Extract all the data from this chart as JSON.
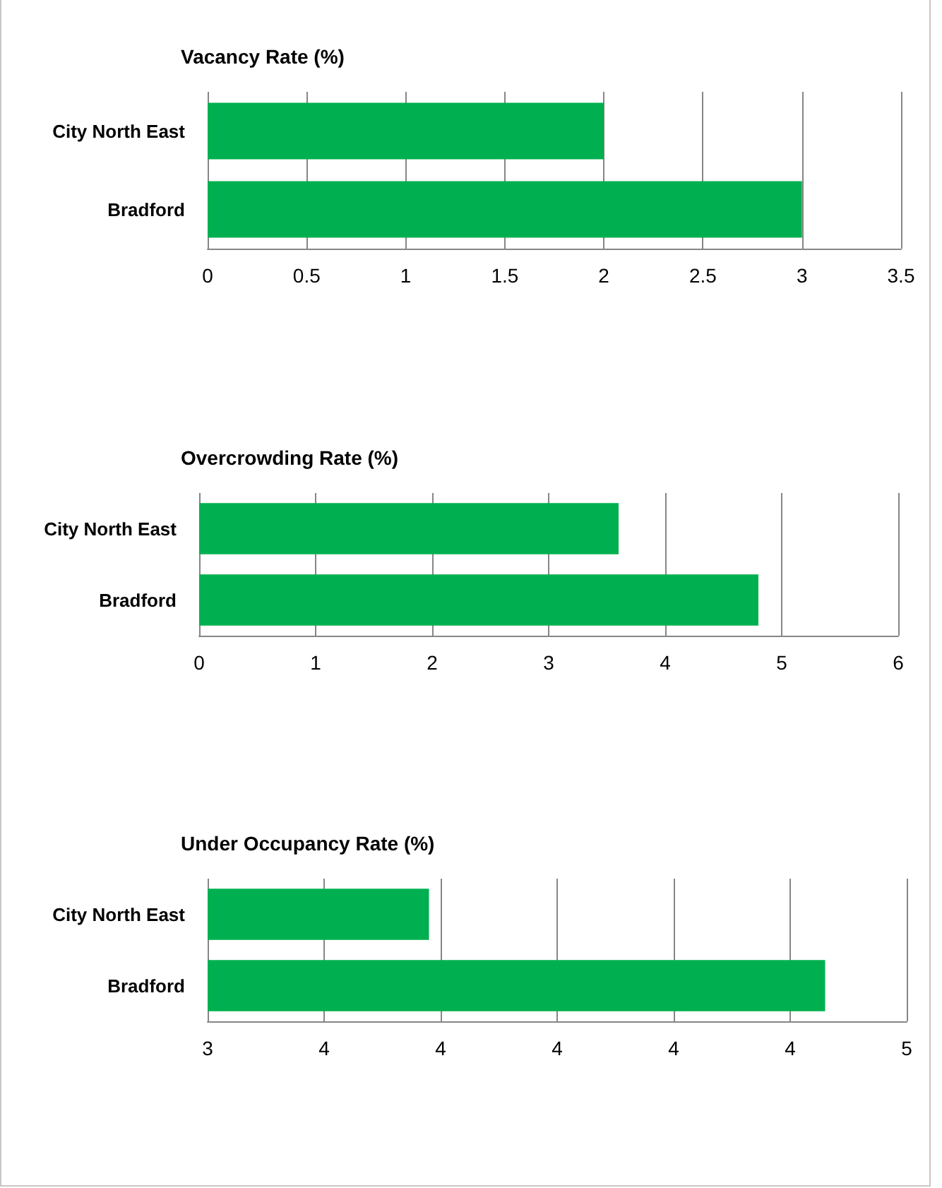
{
  "chart_data": [
    {
      "type": "bar",
      "orientation": "horizontal",
      "title": "Vacancy Rate (%)",
      "categories": [
        "City North East",
        "Bradford"
      ],
      "values": [
        2,
        3
      ],
      "color": "#00b050",
      "xlim": [
        0,
        3.5
      ],
      "xticks": [
        0,
        0.5,
        1,
        1.5,
        2,
        2.5,
        3,
        3.5
      ],
      "grid": "x"
    },
    {
      "type": "bar",
      "orientation": "horizontal",
      "title": "Overcrowding Rate (%)",
      "categories": [
        "City North East",
        "Bradford"
      ],
      "values": [
        3.6,
        4.8
      ],
      "color": "#00b050",
      "xlim": [
        0,
        6
      ],
      "xticks": [
        0,
        1,
        2,
        3,
        4,
        5,
        6
      ],
      "grid": "x"
    },
    {
      "type": "bar",
      "orientation": "horizontal",
      "title": "Under Occupancy Rate (%)",
      "categories": [
        "City North East",
        "Bradford"
      ],
      "values": [
        3.78,
        4.46
      ],
      "color": "#00b050",
      "xlim": [
        3.4,
        4.6
      ],
      "xticks": [
        {
          "value": 3.4,
          "label": "3"
        },
        {
          "value": 3.6,
          "label": "4"
        },
        {
          "value": 3.8,
          "label": "4"
        },
        {
          "value": 4.0,
          "label": "4"
        },
        {
          "value": 4.2,
          "label": "4"
        },
        {
          "value": 4.4,
          "label": "4"
        },
        {
          "value": 4.6,
          "label": "5"
        }
      ],
      "grid": "x"
    }
  ]
}
